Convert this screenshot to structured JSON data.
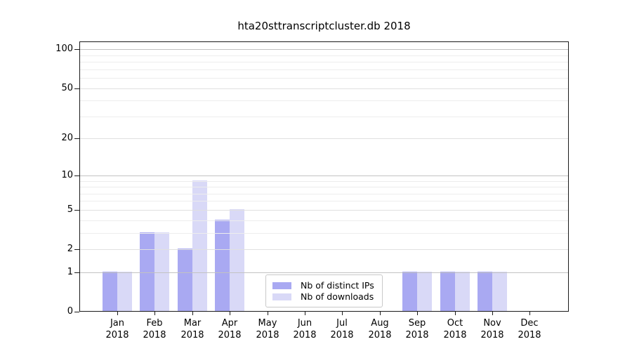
{
  "chart_data": {
    "type": "bar",
    "title": "hta20sttranscriptcluster.db 2018",
    "xlabel": "",
    "ylabel": "",
    "year": "2018",
    "categories": [
      "Jan",
      "Feb",
      "Mar",
      "Apr",
      "May",
      "Jun",
      "Jul",
      "Aug",
      "Sep",
      "Oct",
      "Nov",
      "Dec"
    ],
    "series": [
      {
        "name": "Nb of distinct IPs",
        "color": "#a9a9f2",
        "values": [
          1,
          3,
          2,
          4,
          0,
          0,
          0,
          0,
          1,
          1,
          1,
          0
        ]
      },
      {
        "name": "Nb of downloads",
        "color": "#d9d9f7",
        "values": [
          1,
          3,
          9,
          5,
          0,
          0,
          0,
          0,
          1,
          1,
          1,
          0
        ]
      }
    ],
    "yscale": "log10(1+y)",
    "yticks": [
      0,
      1,
      2,
      5,
      10,
      20,
      50,
      100
    ],
    "ylim": [
      0,
      115
    ],
    "grid": true,
    "grid_minor_values": [
      3,
      4,
      6,
      7,
      8,
      9,
      30,
      40,
      60,
      70,
      80,
      90
    ],
    "legend_position": "lower-center",
    "colors": {
      "grid_major": "#c2c2c2",
      "grid_mid": "#e0e0e0",
      "grid_minor": "#ededed",
      "spine": "#1a1a1a"
    }
  }
}
